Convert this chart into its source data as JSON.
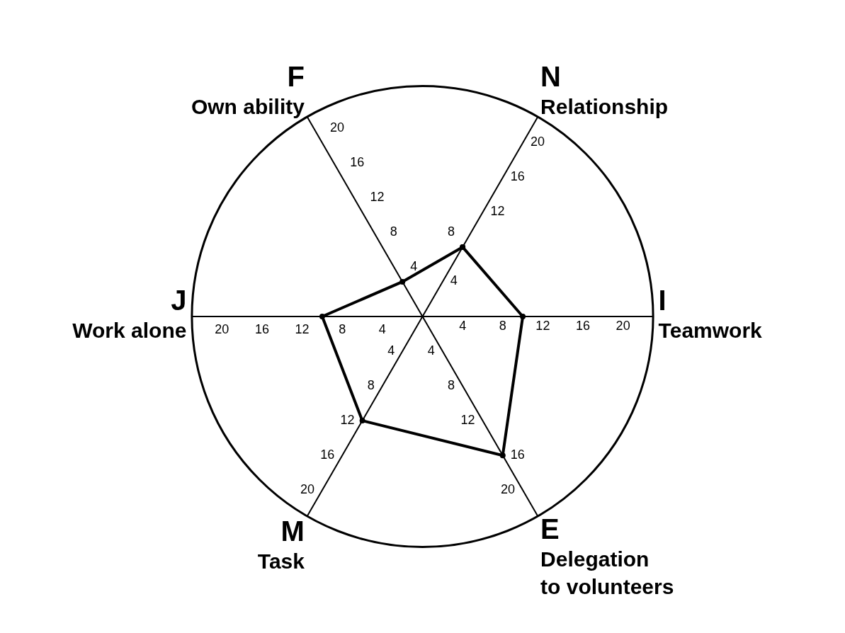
{
  "chart_data": {
    "type": "radar",
    "categories": [
      "N\nRelationship",
      "I\nTeamwork",
      "E\nDelegation\nto volunteers",
      "M\nTask",
      "J\nWork alone",
      "F\nOwn ability"
    ],
    "series": [
      {
        "color": "#000000",
        "values": [
          8,
          10,
          16,
          12,
          10,
          4
        ]
      }
    ],
    "ylim": [
      0,
      23
    ],
    "yticks": [
      4,
      8,
      12,
      16,
      20
    ],
    "annotations": [
      "4",
      "8",
      "12",
      "16",
      "20",
      "4",
      "8",
      "12",
      "16",
      "20",
      "4",
      "8",
      "12",
      "16",
      "20",
      "4",
      "8",
      "12",
      "16",
      "20",
      "4",
      "8",
      "12",
      "16",
      "20"
    ],
    "marker": "circle",
    "line_style": "solid",
    "grid": false
  }
}
